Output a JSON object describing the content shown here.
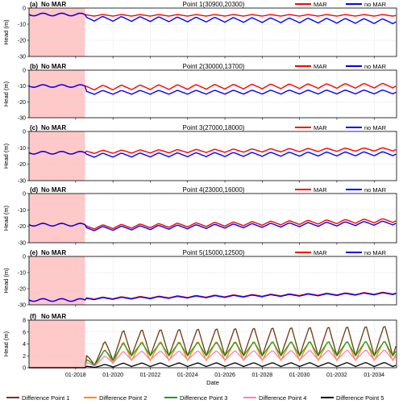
{
  "chart_data": {
    "type": "line",
    "figure_xlabel": "Date",
    "x_ticks": [
      "01-2018",
      "01-2020",
      "01-2022",
      "01-2024",
      "01-2026",
      "01-2028",
      "01-2030",
      "01-2032",
      "01-2034"
    ],
    "xlim": [
      2015.5,
      2035.2
    ],
    "no_mar_shade": {
      "label": "No MAR",
      "start": 2015.5,
      "end": 2018.5,
      "color": "#ffc9c9"
    },
    "panels": [
      {
        "label": "(a)",
        "title": "Point 1(30900,20300)",
        "shade_label": "No MAR",
        "ylabel": "Head (m)",
        "ylim": [
          -30,
          0
        ],
        "yticks": [
          0,
          -10,
          -20,
          -30
        ],
        "series": [
          {
            "name": "MAR",
            "color": "#ff0000",
            "base": -4.5,
            "amp": 1.0,
            "trend": 0,
            "start_val": -4
          },
          {
            "name": "no MAR",
            "color": "#0000ff",
            "base": -6.5,
            "amp": 3.0,
            "trend": -0.1,
            "start_val": -4
          }
        ]
      },
      {
        "label": "(b)",
        "title": "Point 2(30000,13700)",
        "shade_label": "No MAR",
        "ylabel": "Head (m)",
        "ylim": [
          -30,
          0
        ],
        "yticks": [
          0,
          -10,
          -20,
          -30
        ],
        "series": [
          {
            "name": "MAR",
            "color": "#ff0000",
            "base": -11,
            "amp": 3.0,
            "trend": 0.08,
            "start_val": -10
          },
          {
            "name": "no MAR",
            "color": "#0000ff",
            "base": -14,
            "amp": 2.5,
            "trend": 0.02,
            "start_val": -10
          }
        ]
      },
      {
        "label": "(c)",
        "title": "Point 3(27000,18000)",
        "shade_label": "No MAR",
        "ylabel": "Head (m)",
        "ylim": [
          -30,
          0
        ],
        "yticks": [
          0,
          -10,
          -20,
          -30
        ],
        "series": [
          {
            "name": "MAR",
            "color": "#ff0000",
            "base": -12.5,
            "amp": 2.0,
            "trend": 0.1,
            "start_val": -13
          },
          {
            "name": "no MAR",
            "color": "#0000ff",
            "base": -14.5,
            "amp": 2.5,
            "trend": 0.06,
            "start_val": -13
          }
        ]
      },
      {
        "label": "(d)",
        "title": "Point 4(23000,16000)",
        "shade_label": "No MAR",
        "ylabel": "Head (m)",
        "ylim": [
          -30,
          0
        ],
        "yticks": [
          0,
          -10,
          -20,
          -30
        ],
        "series": [
          {
            "name": "MAR",
            "color": "#ff0000",
            "base": -20.5,
            "amp": 2.5,
            "trend": 0.25,
            "start_val": -19
          },
          {
            "name": "no MAR",
            "color": "#0000ff",
            "base": -21.5,
            "amp": 2.5,
            "trend": 0.22,
            "start_val": -19
          }
        ]
      },
      {
        "label": "(e)",
        "title": "Point 5(15000,12500)",
        "shade_label": "No MAR",
        "ylabel": "Head (m)",
        "ylim": [
          -30,
          0
        ],
        "yticks": [
          0,
          -10,
          -20,
          -30
        ],
        "series": [
          {
            "name": "MAR",
            "color": "#ff0000",
            "base": -26,
            "amp": 1.2,
            "trend": 0.2,
            "start_val": -27
          },
          {
            "name": "no MAR",
            "color": "#0000ff",
            "base": -26.3,
            "amp": 1.2,
            "trend": 0.2,
            "start_val": -27
          }
        ]
      },
      {
        "label": "(f)",
        "title": "",
        "shade_label": "No MAR",
        "ylabel": "Head (m)",
        "ylim": [
          0,
          8
        ],
        "yticks": [
          0,
          2,
          4,
          6,
          8
        ],
        "difference": true,
        "series": [
          {
            "name": "Difference Point 1",
            "color": "#6b3a10",
            "peak": 6.5,
            "low": 2.0,
            "rise": 0.25
          },
          {
            "name": "Difference Point 2",
            "color": "#ff8a00",
            "peak": 4.5,
            "low": 1.2,
            "rise": 0.05
          },
          {
            "name": "Difference Point 3",
            "color": "#1e9e1e",
            "peak": 4.2,
            "low": 2.0,
            "rise": 0.1
          },
          {
            "name": "Difference Point 4",
            "color": "#ff7fbf",
            "peak": 2.8,
            "low": 1.3,
            "rise": 0.08
          },
          {
            "name": "Difference Point 5",
            "color": "#000000",
            "peak": 0.8,
            "low": 0.2,
            "rise": 0.03
          }
        ]
      }
    ]
  }
}
